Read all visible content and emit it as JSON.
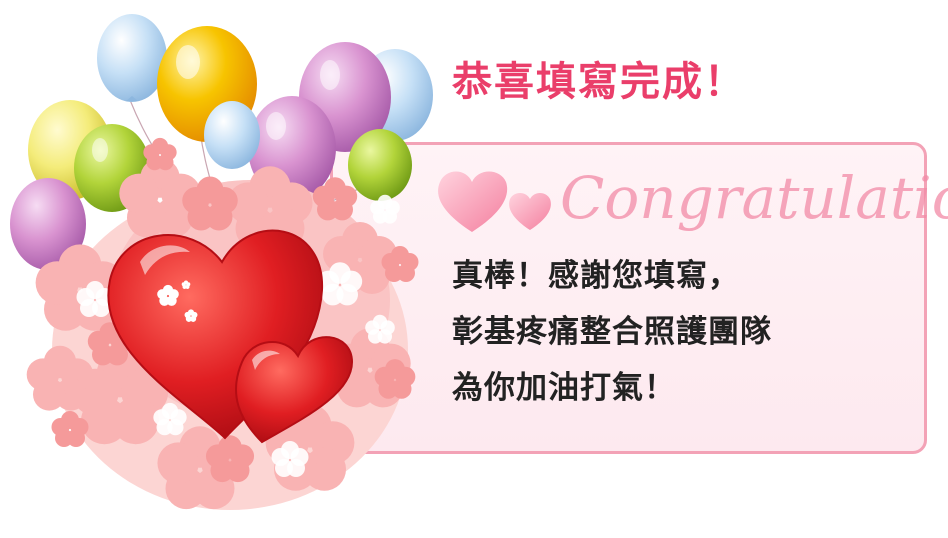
{
  "headline": "恭喜填寫完成！",
  "script_word": "Congratulation",
  "message": {
    "line1": "真棒！感謝您填寫，",
    "line2": "彰基疼痛整合照護團隊",
    "line3": "為你加油打氣！"
  },
  "colors": {
    "headline": "#ea3e6a",
    "card_border": "#f3a2b6",
    "heart_red": "#d8141f",
    "balloon_yellow": "#f5b800",
    "balloon_purple": "#d88fd0",
    "balloon_blue": "#b9d8f3",
    "balloon_green": "#a8c932",
    "flower_pink": "#f7b9b9"
  }
}
